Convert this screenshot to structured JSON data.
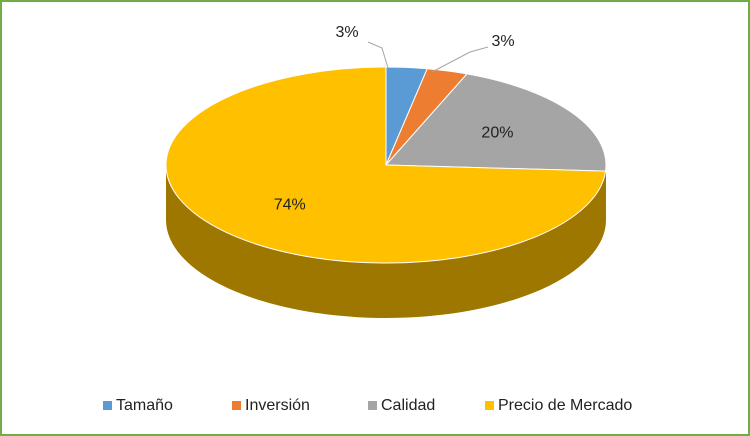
{
  "chart_data": {
    "type": "pie3d",
    "categories": [
      "Tamaño",
      "Inversión",
      "Calidad",
      "Precio de Mercado"
    ],
    "values": [
      3,
      3,
      20,
      74
    ],
    "value_labels": [
      "3%",
      "3%",
      "20%",
      "74%"
    ],
    "colors": [
      "#5b9bd5",
      "#ed7d31",
      "#a5a5a5",
      "#ffc000"
    ],
    "legend": "bottom"
  }
}
